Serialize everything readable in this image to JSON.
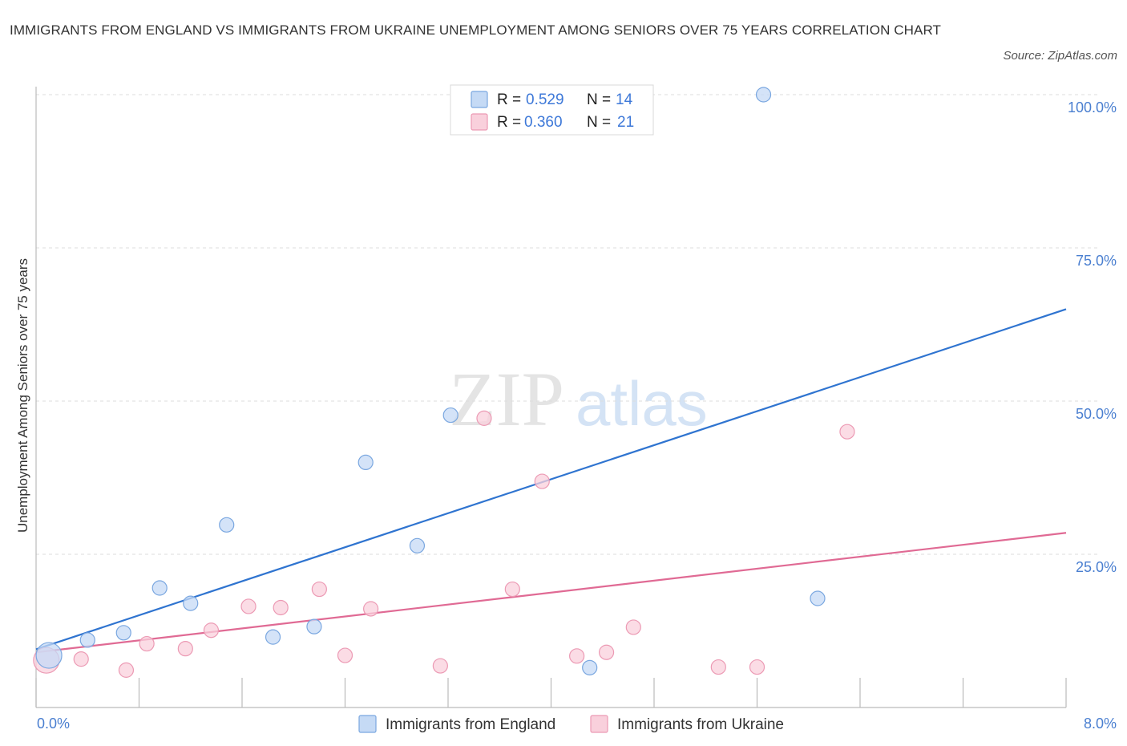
{
  "header": {
    "title": "IMMIGRANTS FROM ENGLAND VS IMMIGRANTS FROM UKRAINE UNEMPLOYMENT AMONG SENIORS OVER 75 YEARS CORRELATION CHART",
    "source": "Source: ZipAtlas.com"
  },
  "watermark": {
    "zip": "ZIP",
    "atlas": "atlas"
  },
  "legend": {
    "r_label": "R =",
    "n_label": "N =",
    "entries": [
      {
        "r": "0.529",
        "n": "14",
        "color": "#a8c8f0"
      },
      {
        "r": "0.360",
        "n": "21",
        "color": "#f5b8cb"
      }
    ]
  },
  "colors": {
    "england_fill": "#c5daf5",
    "england_stroke": "#7aa7e0",
    "england_line": "#2f74d0",
    "ukraine_fill": "#f9d0dc",
    "ukraine_stroke": "#ec9ab4",
    "ukraine_line": "#e06a94"
  },
  "chart_data": {
    "type": "scatter",
    "title": "IMMIGRANTS FROM ENGLAND VS IMMIGRANTS FROM UKRAINE UNEMPLOYMENT AMONG SENIORS OVER 75 YEARS CORRELATION CHART",
    "xlabel": "",
    "ylabel": "Unemployment Among Seniors over 75 years",
    "xlim": [
      0,
      8
    ],
    "ylim": [
      0,
      100
    ],
    "x_tick_labels": [
      "0.0%",
      "8.0%"
    ],
    "y_ticks": [
      25,
      50,
      75,
      100
    ],
    "y_tick_labels": [
      "25.0%",
      "50.0%",
      "75.0%",
      "100.0%"
    ],
    "grid": true,
    "series": [
      {
        "name": "Immigrants from England",
        "R": 0.529,
        "N": 14,
        "points": [
          {
            "x": 0.1,
            "y": 8.5,
            "size": "large"
          },
          {
            "x": 0.4,
            "y": 11.0
          },
          {
            "x": 0.68,
            "y": 12.2
          },
          {
            "x": 0.96,
            "y": 19.5
          },
          {
            "x": 1.2,
            "y": 17.0
          },
          {
            "x": 1.48,
            "y": 29.8
          },
          {
            "x": 1.84,
            "y": 11.5
          },
          {
            "x": 2.16,
            "y": 13.2
          },
          {
            "x": 2.56,
            "y": 40.0
          },
          {
            "x": 2.96,
            "y": 26.4
          },
          {
            "x": 3.22,
            "y": 47.7
          },
          {
            "x": 4.3,
            "y": 6.5
          },
          {
            "x": 5.65,
            "y": 100.0
          },
          {
            "x": 6.07,
            "y": 17.8
          }
        ],
        "trend": {
          "x0": 0.0,
          "y0": 9.5,
          "x1": 8.0,
          "y1": 65.0
        }
      },
      {
        "name": "Immigrants from Ukraine",
        "R": 0.36,
        "N": 21,
        "points": [
          {
            "x": 0.08,
            "y": 7.7,
            "size": "large"
          },
          {
            "x": 0.35,
            "y": 7.9
          },
          {
            "x": 0.7,
            "y": 6.1
          },
          {
            "x": 0.86,
            "y": 10.4
          },
          {
            "x": 1.16,
            "y": 9.6
          },
          {
            "x": 1.36,
            "y": 12.6
          },
          {
            "x": 1.65,
            "y": 16.5
          },
          {
            "x": 1.9,
            "y": 16.3
          },
          {
            "x": 2.2,
            "y": 19.3
          },
          {
            "x": 2.4,
            "y": 8.5
          },
          {
            "x": 2.6,
            "y": 16.1
          },
          {
            "x": 3.14,
            "y": 6.8
          },
          {
            "x": 3.48,
            "y": 47.2
          },
          {
            "x": 3.7,
            "y": 19.3
          },
          {
            "x": 3.93,
            "y": 36.9
          },
          {
            "x": 4.2,
            "y": 8.4
          },
          {
            "x": 4.43,
            "y": 9.0
          },
          {
            "x": 4.64,
            "y": 13.1
          },
          {
            "x": 5.3,
            "y": 6.6
          },
          {
            "x": 5.6,
            "y": 6.6
          },
          {
            "x": 6.3,
            "y": 45.0
          }
        ],
        "trend": {
          "x0": 0.0,
          "y0": 9.0,
          "x1": 8.0,
          "y1": 28.5
        }
      }
    ]
  }
}
